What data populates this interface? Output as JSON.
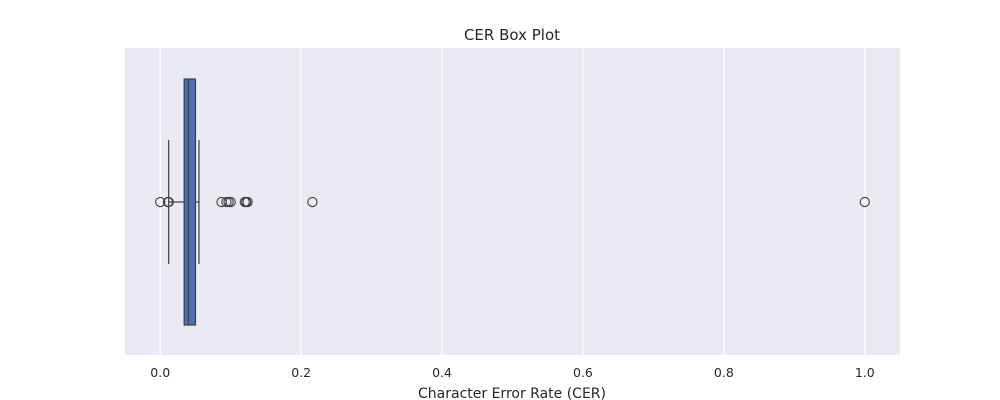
{
  "chart_data": {
    "type": "boxplot",
    "title": "CER Box Plot",
    "xlabel": "Character Error Rate (CER)",
    "ylabel": "",
    "xlim": [
      -0.05,
      1.05
    ],
    "orientation": "horizontal",
    "grid": true,
    "x_ticks": [
      0.0,
      0.2,
      0.4,
      0.6,
      0.8,
      1.0
    ],
    "x_tick_labels": [
      "0.0",
      "0.2",
      "0.4",
      "0.6",
      "0.8",
      "1.0"
    ],
    "box": {
      "whisker_low": 0.012,
      "q1": 0.034,
      "median": 0.04,
      "q3": 0.05,
      "whisker_high": 0.055
    },
    "outliers": [
      0.0,
      0.011,
      0.012,
      0.087,
      0.094,
      0.097,
      0.1,
      0.12,
      0.122,
      0.124,
      0.216,
      1.0
    ],
    "colors": {
      "plot_background": "#eaeaf2",
      "grid": "#ffffff",
      "box_fill": "#4c72b0",
      "line": "#3f3f3f"
    }
  }
}
